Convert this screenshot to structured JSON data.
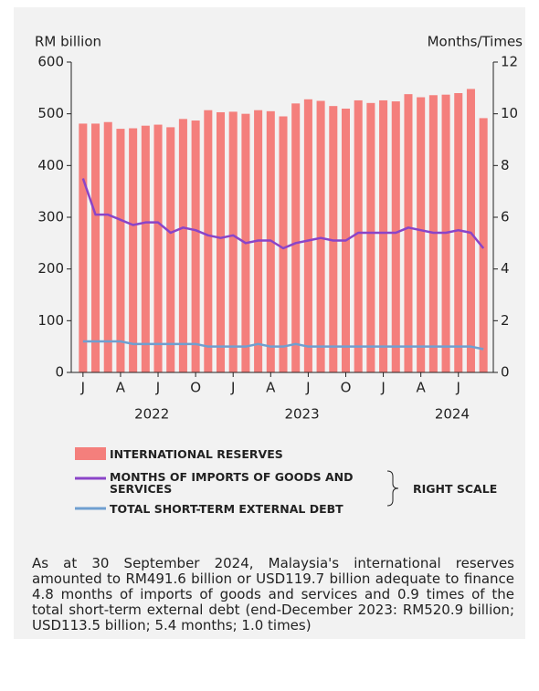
{
  "chart_data": {
    "type": "bar_line",
    "y_label": "RM billion",
    "y2_label": "Months/Times",
    "categories": [
      "J",
      null,
      null,
      "A",
      null,
      null,
      "J",
      null,
      null,
      "O",
      null,
      null,
      "J",
      null,
      null,
      "A",
      null,
      null,
      "J",
      null,
      null,
      "O",
      null,
      null,
      "J",
      null,
      null,
      "A",
      null,
      null,
      "J",
      null,
      null
    ],
    "years": [
      "2022",
      "2023",
      "2024"
    ],
    "series": [
      {
        "name": "INTERNATIONAL RESERVES",
        "color": "#f47f7c",
        "kind": "bar",
        "values": [
          481,
          481,
          484,
          471,
          472,
          477,
          479,
          474,
          490,
          487,
          507,
          503,
          504,
          500,
          507,
          505,
          495,
          520,
          528,
          525,
          515,
          510,
          526,
          520.9,
          526,
          524,
          538,
          532,
          536,
          537,
          540,
          548,
          491.6
        ]
      },
      {
        "name": "MONTHS OF IMPORTS OF GOODS AND SERVICES",
        "color": "#8a44c8",
        "kind": "line",
        "axis": "y2",
        "values": [
          7.5,
          6.1,
          6.1,
          5.9,
          5.7,
          5.8,
          5.8,
          5.4,
          5.6,
          5.5,
          5.3,
          5.2,
          5.3,
          5.0,
          5.1,
          5.1,
          4.8,
          5.0,
          5.1,
          5.2,
          5.1,
          5.1,
          5.4,
          5.4,
          5.4,
          5.4,
          5.6,
          5.5,
          5.4,
          5.4,
          5.5,
          5.4,
          4.8
        ]
      },
      {
        "name": "TOTAL SHORT-TERM EXTERNAL DEBT",
        "color": "#6f9fd0",
        "kind": "line",
        "axis": "y2",
        "values": [
          1.2,
          1.2,
          1.2,
          1.2,
          1.1,
          1.1,
          1.1,
          1.1,
          1.1,
          1.1,
          1.0,
          1.0,
          1.0,
          1.0,
          1.1,
          1.0,
          1.0,
          1.1,
          1.0,
          1.0,
          1.0,
          1.0,
          1.0,
          1.0,
          1.0,
          1.0,
          1.0,
          1.0,
          1.0,
          1.0,
          1.0,
          1.0,
          0.9
        ]
      }
    ],
    "right_scale_label": "RIGHT SCALE",
    "ylim": [
      0,
      600
    ],
    "yticks": [
      0,
      100,
      200,
      300,
      400,
      500,
      600
    ],
    "y2lim": [
      0,
      12
    ],
    "y2ticks": [
      0,
      2,
      4,
      6,
      8,
      10,
      12
    ],
    "note": "As at 30 September 2024, Malaysia's international reserves amounted to RM491.6 billion or USD119.7 billion adequate to finance 4.8 months of imports of goods and services and 0.9 times of the total short-term external debt (end-December 2023: RM520.9 billion; USD113.5 billion; 5.4 months; 1.0 times)"
  }
}
